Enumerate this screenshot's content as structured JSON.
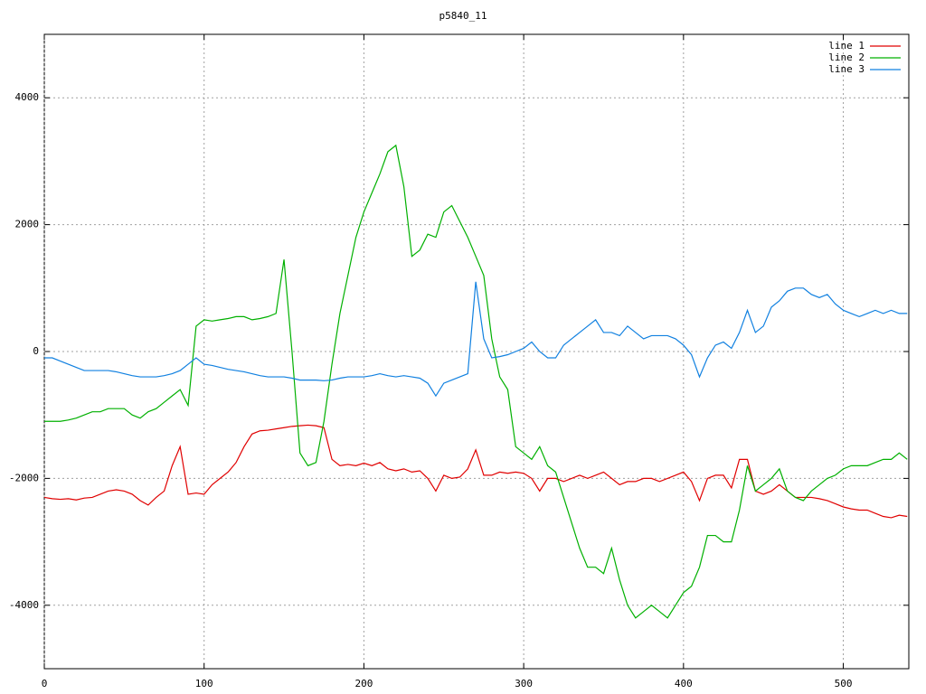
{
  "chart_data": {
    "type": "line",
    "title": "p5840_11",
    "x": [
      0,
      5,
      10,
      15,
      20,
      25,
      30,
      35,
      40,
      45,
      50,
      55,
      60,
      65,
      70,
      75,
      80,
      85,
      90,
      95,
      100,
      105,
      110,
      115,
      120,
      125,
      130,
      135,
      140,
      145,
      150,
      155,
      160,
      165,
      170,
      175,
      180,
      185,
      190,
      195,
      200,
      205,
      210,
      215,
      220,
      225,
      230,
      235,
      240,
      245,
      250,
      255,
      260,
      265,
      270,
      275,
      280,
      285,
      290,
      295,
      300,
      305,
      310,
      315,
      320,
      325,
      330,
      335,
      340,
      345,
      350,
      355,
      360,
      365,
      370,
      375,
      380,
      385,
      390,
      395,
      400,
      405,
      410,
      415,
      420,
      425,
      430,
      435,
      440,
      445,
      450,
      455,
      460,
      465,
      470,
      475,
      480,
      485,
      490,
      495,
      500,
      505,
      510,
      515,
      520,
      525,
      530,
      535,
      540
    ],
    "series": [
      {
        "name": "line 1",
        "color": "#e00000",
        "values": [
          -2300,
          -2320,
          -2330,
          -2320,
          -2340,
          -2310,
          -2300,
          -2250,
          -2200,
          -2180,
          -2200,
          -2250,
          -2350,
          -2420,
          -2300,
          -2200,
          -1800,
          -1500,
          -2250,
          -2230,
          -2250,
          -2100,
          -2000,
          -1900,
          -1750,
          -1500,
          -1300,
          -1250,
          -1240,
          -1220,
          -1200,
          -1180,
          -1170,
          -1160,
          -1170,
          -1200,
          -1700,
          -1800,
          -1780,
          -1800,
          -1760,
          -1800,
          -1750,
          -1850,
          -1880,
          -1850,
          -1900,
          -1880,
          -2000,
          -2200,
          -1950,
          -2000,
          -1980,
          -1850,
          -1550,
          -1950,
          -1950,
          -1900,
          -1920,
          -1900,
          -1920,
          -2000,
          -2200,
          -2000,
          -2000,
          -2050,
          -2000,
          -1950,
          -2000,
          -1950,
          -1900,
          -2000,
          -2100,
          -2050,
          -2050,
          -2000,
          -2000,
          -2050,
          -2000,
          -1950,
          -1900,
          -2050,
          -2350,
          -2000,
          -1950,
          -1950,
          -2150,
          -1700,
          -1700,
          -2200,
          -2250,
          -2200,
          -2100,
          -2200,
          -2300,
          -2300,
          -2300,
          -2320,
          -2350,
          -2400,
          -2450,
          -2480,
          -2500,
          -2500,
          -2550,
          -2600,
          -2620,
          -2580,
          -2600
        ]
      },
      {
        "name": "line 2",
        "color": "#00b000",
        "values": [
          -1100,
          -1100,
          -1100,
          -1080,
          -1050,
          -1000,
          -950,
          -950,
          -900,
          -900,
          -900,
          -1000,
          -1050,
          -950,
          -900,
          -800,
          -700,
          -600,
          -850,
          400,
          500,
          480,
          500,
          520,
          550,
          550,
          500,
          520,
          550,
          600,
          1450,
          0,
          -1600,
          -1800,
          -1750,
          -1100,
          -200,
          600,
          1200,
          1800,
          2200,
          2500,
          2800,
          3150,
          3250,
          2600,
          1500,
          1600,
          1850,
          1800,
          2200,
          2300,
          2050,
          1800,
          1500,
          1200,
          200,
          -400,
          -600,
          -1500,
          -1600,
          -1700,
          -1500,
          -1800,
          -1900,
          -2300,
          -2700,
          -3100,
          -3400,
          -3400,
          -3500,
          -3100,
          -3600,
          -4000,
          -4200,
          -4100,
          -4000,
          -4100,
          -4200,
          -4000,
          -3800,
          -3700,
          -3400,
          -2900,
          -2900,
          -3000,
          -3000,
          -2500,
          -1800,
          -2200,
          -2100,
          -2000,
          -1850,
          -2200,
          -2300,
          -2350,
          -2200,
          -2100,
          -2000,
          -1950,
          -1850,
          -1800,
          -1800,
          -1800,
          -1750,
          -1700,
          -1700,
          -1600,
          -1700
        ]
      },
      {
        "name": "line 3",
        "color": "#1080e0",
        "values": [
          -100,
          -100,
          -150,
          -200,
          -250,
          -300,
          -300,
          -300,
          -300,
          -320,
          -350,
          -380,
          -400,
          -400,
          -400,
          -380,
          -350,
          -300,
          -200,
          -100,
          -200,
          -220,
          -250,
          -280,
          -300,
          -320,
          -350,
          -380,
          -400,
          -400,
          -400,
          -420,
          -450,
          -450,
          -450,
          -460,
          -450,
          -420,
          -400,
          -400,
          -400,
          -380,
          -350,
          -380,
          -400,
          -380,
          -400,
          -420,
          -500,
          -700,
          -500,
          -450,
          -400,
          -350,
          1100,
          200,
          -100,
          -80,
          -50,
          0,
          50,
          150,
          0,
          -100,
          -100,
          100,
          200,
          300,
          400,
          500,
          300,
          300,
          250,
          400,
          300,
          200,
          250,
          250,
          250,
          200,
          100,
          -50,
          -400,
          -100,
          100,
          150,
          50,
          300,
          650,
          300,
          400,
          700,
          800,
          950,
          1000,
          1000,
          900,
          850,
          900,
          750,
          650,
          600,
          550,
          600,
          650,
          600,
          650,
          600,
          600
        ]
      }
    ],
    "xlim": [
      0,
      541
    ],
    "ylim": [
      -5000,
      5000
    ],
    "xticks": [
      0,
      100,
      200,
      300,
      400,
      500
    ],
    "yticks": [
      -4000,
      -2000,
      0,
      2000,
      4000
    ],
    "grid": true,
    "legend": "top-right"
  }
}
